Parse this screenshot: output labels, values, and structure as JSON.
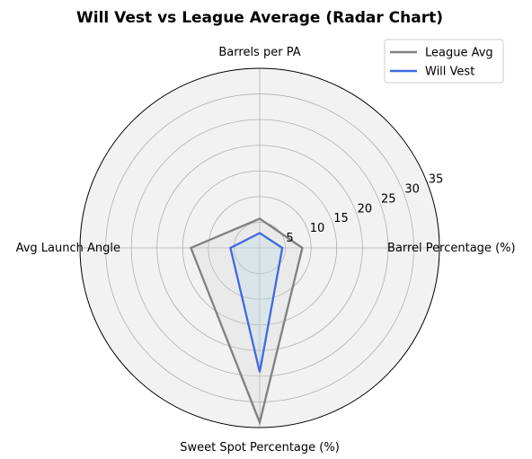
{
  "chart_data": {
    "type": "radar",
    "title": "Will Vest vs League Average (Radar Chart)",
    "axes": [
      "Barrel Percentage (%)",
      "Barrels per PA",
      "Avg Launch Angle",
      "Sweet Spot Percentage (%)"
    ],
    "rticks": [
      5,
      10,
      15,
      20,
      25,
      30,
      35
    ],
    "rlim": [
      0,
      35
    ],
    "series": [
      {
        "name": "League Avg",
        "values": [
          8.3,
          5.7,
          13.4,
          34.0
        ],
        "color": "#808080",
        "fill": "#d3d3d3"
      },
      {
        "name": "Will Vest",
        "values": [
          4.4,
          2.9,
          5.7,
          24.2
        ],
        "color": "#4169e1",
        "fill": "#add8e6"
      }
    ],
    "legend_position": "top-right",
    "grid": true
  }
}
